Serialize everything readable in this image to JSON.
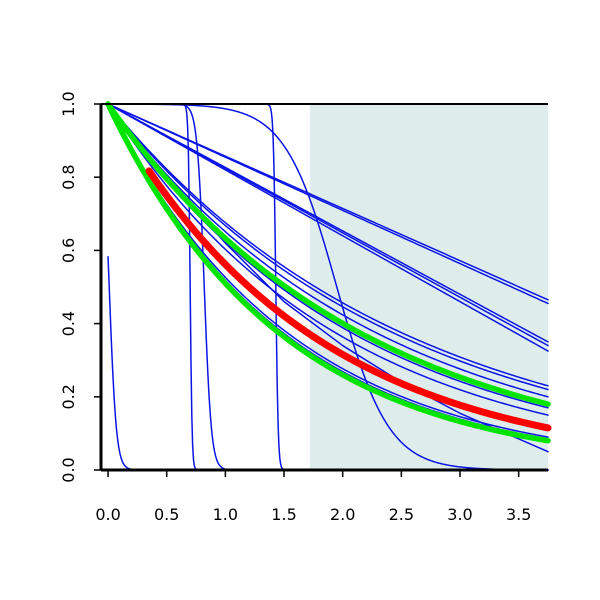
{
  "chart_data": {
    "type": "line",
    "title": "",
    "xlabel": "",
    "ylabel": "",
    "xlim": [
      -0.06,
      3.75
    ],
    "ylim": [
      0.0,
      1.0
    ],
    "x_ticks": [
      0.0,
      0.5,
      1.0,
      1.5,
      2.0,
      2.5,
      3.0,
      3.5
    ],
    "x_tick_labels": [
      "0.0",
      "0.5",
      "1.0",
      "1.5",
      "2.0",
      "2.5",
      "3.0",
      "3.5"
    ],
    "y_ticks": [
      0.0,
      0.2,
      0.4,
      0.6,
      0.8,
      1.0
    ],
    "y_tick_labels": [
      "0.0",
      "0.2",
      "0.4",
      "0.6",
      "0.8",
      "1.0"
    ],
    "shaded_region": {
      "x_from": 1.72,
      "x_to": 3.75,
      "color": "#dfecec"
    },
    "grid": false,
    "legend": "none",
    "colors": {
      "blue": "#0a14e6",
      "red": "#ff0000",
      "green": "#00e400",
      "axis": "#000000"
    },
    "series": [
      {
        "kind": "step",
        "color": "blue",
        "width": 1.5,
        "center": 0.01,
        "steepness": 0.03
      },
      {
        "kind": "step",
        "color": "blue",
        "width": 1.5,
        "center": 0.7,
        "steepness": 0.008
      },
      {
        "kind": "step",
        "color": "blue",
        "width": 1.5,
        "center": 0.82,
        "steepness": 0.03
      },
      {
        "kind": "step",
        "color": "blue",
        "width": 1.5,
        "center": 1.43,
        "steepness": 0.01
      },
      {
        "kind": "step",
        "color": "blue",
        "width": 1.5,
        "center": 1.95,
        "steepness": 0.22
      },
      {
        "kind": "poly",
        "color": "blue",
        "width": 1.5,
        "points": [
          [
            0.0,
            1.0
          ],
          [
            0.4,
            0.84
          ],
          [
            1.0,
            0.62
          ],
          [
            1.5,
            0.46
          ],
          [
            2.0,
            0.34
          ],
          [
            2.5,
            0.24
          ],
          [
            3.0,
            0.155
          ],
          [
            3.75,
            0.05
          ]
        ]
      },
      {
        "kind": "linear",
        "color": "blue",
        "width": 1.5,
        "end": 0.455
      },
      {
        "kind": "linear",
        "color": "blue",
        "width": 1.5,
        "end": 0.465
      },
      {
        "kind": "linear",
        "color": "blue",
        "width": 1.5,
        "end": 0.35
      },
      {
        "kind": "linear",
        "color": "blue",
        "width": 1.5,
        "end": 0.325
      },
      {
        "kind": "linear",
        "color": "blue",
        "width": 1.5,
        "end": 0.34
      },
      {
        "kind": "exp",
        "color": "blue",
        "width": 1.5,
        "end": 0.23
      },
      {
        "kind": "exp",
        "color": "blue",
        "width": 1.5,
        "end": 0.22
      },
      {
        "kind": "exp",
        "color": "blue",
        "width": 1.5,
        "end": 0.2
      },
      {
        "kind": "exp",
        "color": "blue",
        "width": 1.5,
        "end": 0.17
      },
      {
        "kind": "exp",
        "color": "blue",
        "width": 1.5,
        "end": 0.15
      },
      {
        "kind": "exp",
        "color": "blue",
        "width": 1.5,
        "end": 0.09
      },
      {
        "kind": "exp",
        "color": "blue",
        "width": 1.5,
        "end": 0.085
      },
      {
        "kind": "exp",
        "color": "green",
        "width": 5.5,
        "end": 0.18
      },
      {
        "kind": "exp",
        "color": "green",
        "width": 5.5,
        "end": 0.08
      },
      {
        "kind": "exp",
        "color": "red",
        "width": 7,
        "end": 0.115,
        "x_start": 0.35
      }
    ]
  }
}
